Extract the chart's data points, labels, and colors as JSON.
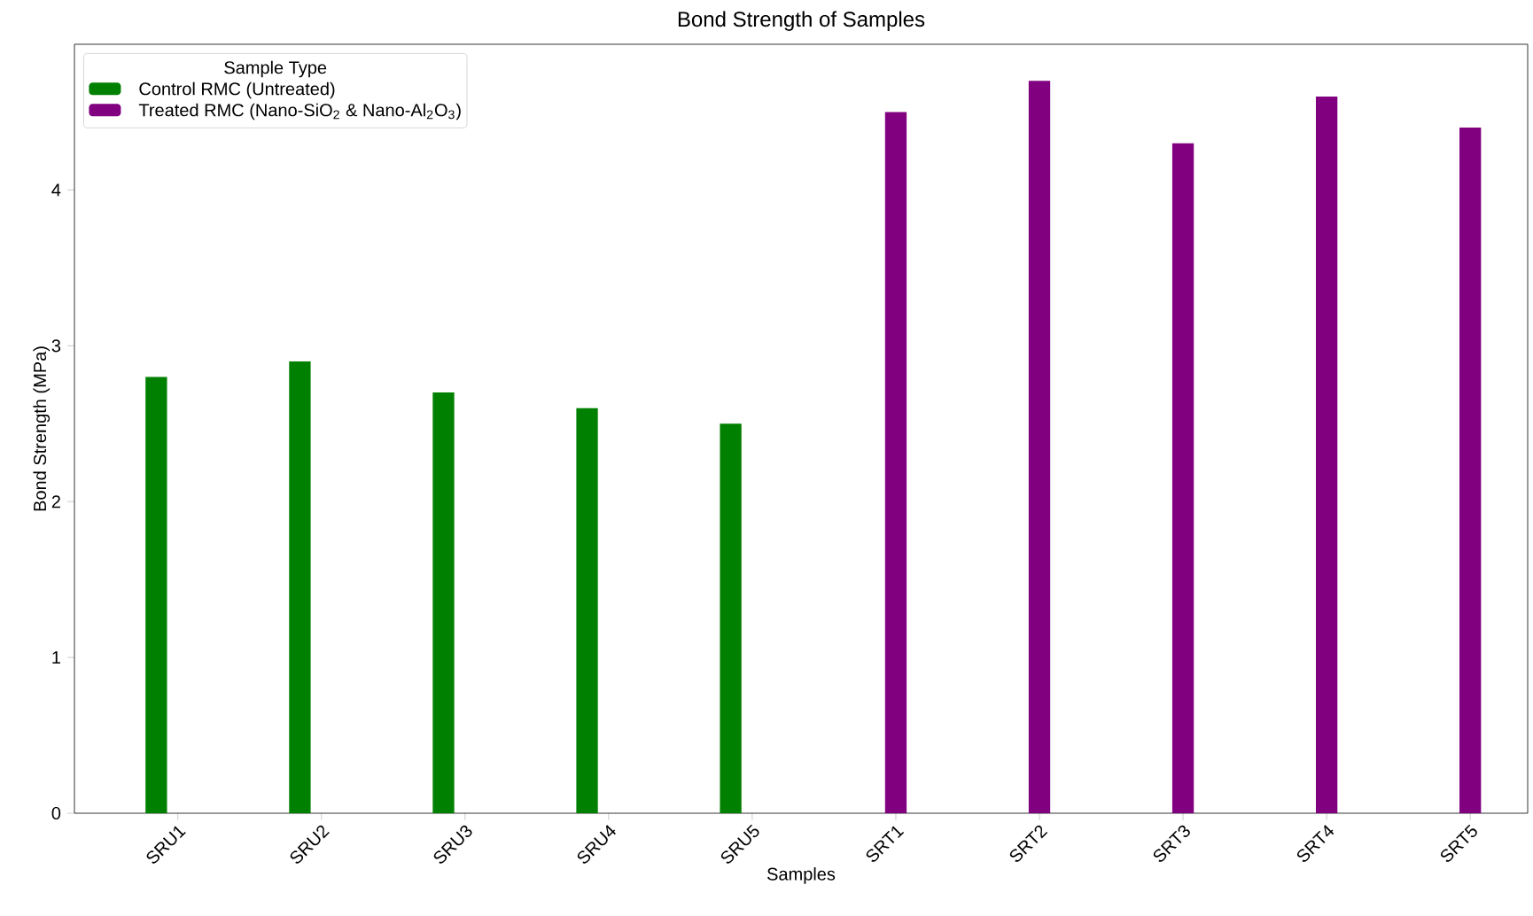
{
  "chart_data": {
    "type": "bar",
    "title": "Bond Strength of Samples",
    "xlabel": "Samples",
    "ylabel": "Bond Strength (MPa)",
    "legend_title": "Sample Type",
    "categories": [
      "SRU1",
      "SRU2",
      "SRU3",
      "SRU4",
      "SRU5",
      "SRT1",
      "SRT2",
      "SRT3",
      "SRT4",
      "SRT5"
    ],
    "series": [
      {
        "name": "Control RMC (Untreated)",
        "color": "#008000",
        "values": [
          2.8,
          2.9,
          2.7,
          2.6,
          2.5,
          null,
          null,
          null,
          null,
          null
        ]
      },
      {
        "name": "Treated RMC (Nano-SiO$_{2}$ & Nano-Al$_{2}$O$_{3}$)",
        "color": "#800080",
        "values": [
          null,
          null,
          null,
          null,
          null,
          4.5,
          4.7,
          4.3,
          4.6,
          4.4
        ]
      }
    ],
    "ylim": [
      0,
      4.935
    ],
    "yticks": [
      0,
      1,
      2,
      3,
      4
    ],
    "grid": false,
    "legend": "top left"
  }
}
